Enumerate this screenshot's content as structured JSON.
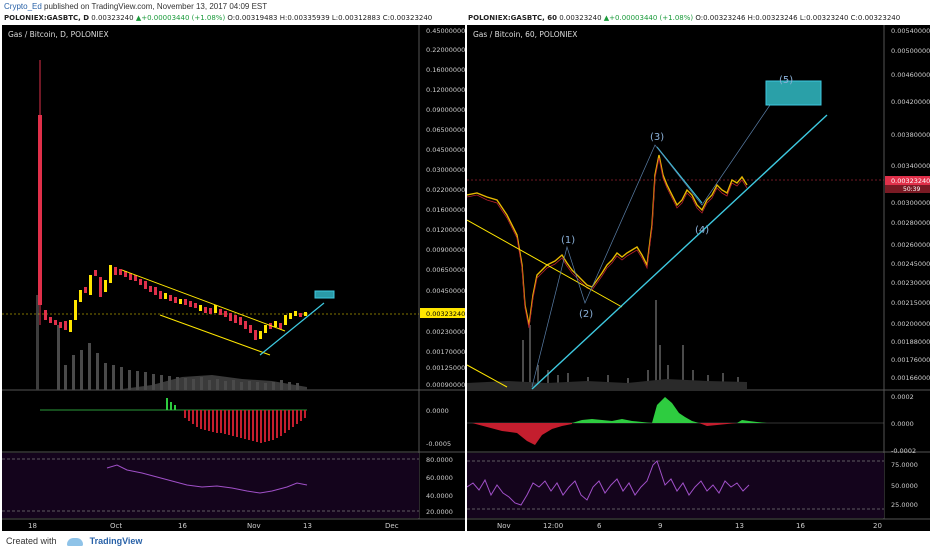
{
  "header": {
    "user": "Crypto_Ed",
    "published": "published on TradingView.com, November 13, 2017 04:09 EST"
  },
  "footer": {
    "created": "Created with",
    "brand": "TradingView"
  },
  "charts": [
    {
      "symbol_line": "POLONIEX:GASBTC, D",
      "ohlc": {
        "last": "0.00323240",
        "change": "+0.00003440 (+1.08%)",
        "o": "O:0.00319483",
        "h": "H:0.00335939",
        "l": "L:0.00312883",
        "c": "C:0.00323240"
      },
      "legend": "Gas / Bitcoin, D, POLONIEX",
      "price_ticks": [
        "0.45000000",
        "0.22000000",
        "0.16000000",
        "0.12000000",
        "0.09000000",
        "0.06500000",
        "0.04500000",
        "0.03000000",
        "0.02200000",
        "0.01600000",
        "0.01200000",
        "0.00900000",
        "0.00650000",
        "0.00450000",
        "0.00323240",
        "0.00230000",
        "0.00170000",
        "0.00125000",
        "0.00090000"
      ],
      "macd_ticks": [
        "0.0000",
        "-0.0005"
      ],
      "rsi_ticks": [
        "80.0000",
        "60.0000",
        "40.0000",
        "20.0000"
      ],
      "time_ticks": [
        "18",
        "Oct",
        "16",
        "Nov",
        "13",
        "Dec"
      ]
    },
    {
      "symbol_line": "POLONIEX:GASBTC, 60",
      "ohlc": {
        "last": "0.00323240",
        "change": "+0.00003440 (+1.08%)",
        "o": "O:0.00323246",
        "h": "H:0.00323246",
        "l": "L:0.00323240",
        "c": "C:0.00323240"
      },
      "legend": "Gas / Bitcoin, 60, POLONIEX",
      "price_ticks": [
        "0.00540000",
        "0.00500000",
        "0.00460000",
        "0.00420000",
        "0.00380000",
        "0.00340000",
        "0.00323240",
        "0.00300000",
        "0.00280000",
        "0.00260000",
        "0.00245000",
        "0.00230000",
        "0.00215000",
        "0.00200000",
        "0.00188000",
        "0.00176000",
        "0.00166000"
      ],
      "countdown": "50:39",
      "macd_ticks": [
        "0.0002",
        "0.0000",
        "-0.0002"
      ],
      "rsi_ticks": [
        "75.0000",
        "50.0000",
        "25.0000"
      ],
      "time_ticks": [
        "Nov",
        "12:00",
        "6",
        "9",
        "13",
        "16",
        "20"
      ],
      "wave_labels": [
        "(1)",
        "(2)",
        "(3)",
        "(4)",
        "(5)"
      ]
    }
  ],
  "chart_data": [
    {
      "type": "candlestick",
      "title": "Gas / Bitcoin, D, POLONIEX",
      "ylim": [
        0.0009,
        0.45
      ],
      "log_scale": true,
      "last_price": 0.0032324,
      "colors": {
        "up": "#ffe600",
        "down": "#e0304a",
        "annotation": "#ffe600",
        "trend": "#3ec9e0"
      }
    },
    {
      "type": "candlestick",
      "title": "Gas / Bitcoin, 60, POLONIEX",
      "ylim": [
        0.00166,
        0.0054
      ],
      "log_scale": true,
      "last_price": 0.0032324,
      "colors": {
        "up": "#ffe600",
        "down": "#e0304a",
        "trend": "#3ec9e0",
        "channel": "#ffe600"
      }
    }
  ]
}
